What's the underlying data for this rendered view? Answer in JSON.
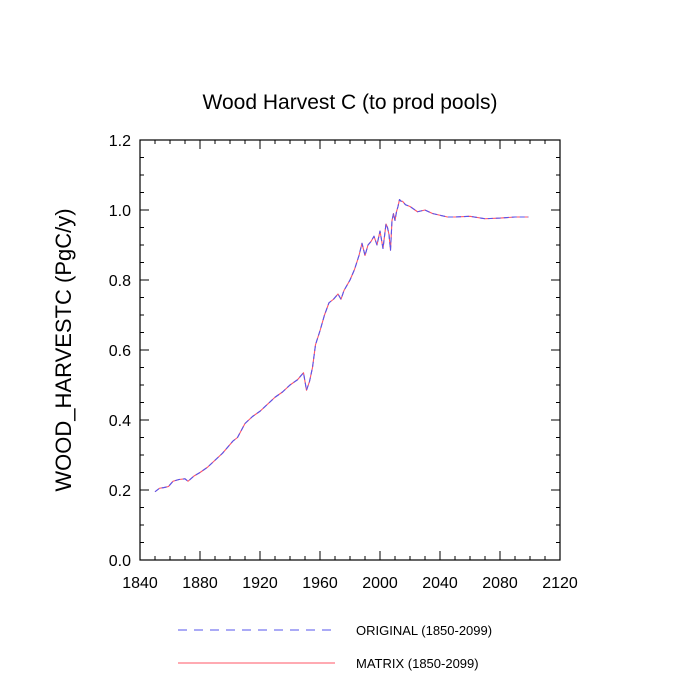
{
  "chart_data": {
    "type": "line",
    "title": "Wood Harvest C (to prod pools)",
    "xlabel": "",
    "ylabel": "WOOD_HARVESTC  (PgC/y)",
    "xlim": [
      1840,
      2120
    ],
    "ylim": [
      0.0,
      1.2
    ],
    "xticks": [
      1840,
      1880,
      1920,
      1960,
      2000,
      2040,
      2080,
      2120
    ],
    "yticks": [
      "0.0",
      "0.2",
      "0.4",
      "0.6",
      "0.8",
      "1.0",
      "1.2"
    ],
    "grid": false,
    "legend_placement": "bottom",
    "series": [
      {
        "name": "ORIGINAL (1850-2099)",
        "color": "#5555ee",
        "style": "dashed",
        "x": [
          1850,
          1853,
          1856,
          1859,
          1862,
          1866,
          1870,
          1872,
          1876,
          1880,
          1885,
          1890,
          1895,
          1898,
          1902,
          1905,
          1910,
          1915,
          1920,
          1925,
          1930,
          1935,
          1940,
          1945,
          1949,
          1951,
          1953,
          1955,
          1957,
          1960,
          1963,
          1966,
          1969,
          1972,
          1974,
          1976,
          1980,
          1983,
          1986,
          1988,
          1990,
          1992,
          1994,
          1996,
          1998,
          2000,
          2002,
          2004,
          2005,
          2006,
          2007,
          2008,
          2009,
          2010,
          2011,
          2012,
          2013,
          2014,
          2015,
          2017,
          2020,
          2025,
          2030,
          2035,
          2040,
          2045,
          2050,
          2060,
          2070,
          2080,
          2090,
          2099
        ],
        "y": [
          0.195,
          0.205,
          0.207,
          0.21,
          0.225,
          0.23,
          0.232,
          0.225,
          0.24,
          0.25,
          0.265,
          0.285,
          0.305,
          0.32,
          0.34,
          0.35,
          0.39,
          0.41,
          0.425,
          0.445,
          0.465,
          0.48,
          0.5,
          0.515,
          0.535,
          0.485,
          0.51,
          0.55,
          0.615,
          0.655,
          0.7,
          0.735,
          0.745,
          0.76,
          0.745,
          0.77,
          0.8,
          0.83,
          0.87,
          0.905,
          0.87,
          0.9,
          0.91,
          0.925,
          0.9,
          0.94,
          0.89,
          0.96,
          0.95,
          0.93,
          0.885,
          0.97,
          0.99,
          0.97,
          0.995,
          1.01,
          1.03,
          1.025,
          1.025,
          1.015,
          1.01,
          0.995,
          1.0,
          0.99,
          0.985,
          0.98,
          0.98,
          0.982,
          0.975,
          0.977,
          0.98,
          0.98
        ]
      },
      {
        "name": "MATRIX (1850-2099)",
        "color": "#ff5566",
        "style": "solid",
        "x": [
          1850,
          1853,
          1856,
          1859,
          1862,
          1866,
          1870,
          1872,
          1876,
          1880,
          1885,
          1890,
          1895,
          1898,
          1902,
          1905,
          1910,
          1915,
          1920,
          1925,
          1930,
          1935,
          1940,
          1945,
          1949,
          1951,
          1953,
          1955,
          1957,
          1960,
          1963,
          1966,
          1969,
          1972,
          1974,
          1976,
          1980,
          1983,
          1986,
          1988,
          1990,
          1992,
          1994,
          1996,
          1998,
          2000,
          2002,
          2004,
          2005,
          2006,
          2007,
          2008,
          2009,
          2010,
          2011,
          2012,
          2013,
          2014,
          2015,
          2017,
          2020,
          2025,
          2030,
          2035,
          2040,
          2045,
          2050,
          2060,
          2070,
          2080,
          2090,
          2099
        ],
        "y": [
          0.195,
          0.205,
          0.207,
          0.21,
          0.225,
          0.23,
          0.232,
          0.225,
          0.24,
          0.25,
          0.265,
          0.285,
          0.305,
          0.32,
          0.34,
          0.35,
          0.39,
          0.41,
          0.425,
          0.445,
          0.465,
          0.48,
          0.5,
          0.515,
          0.535,
          0.485,
          0.51,
          0.55,
          0.615,
          0.655,
          0.7,
          0.735,
          0.745,
          0.76,
          0.745,
          0.77,
          0.8,
          0.83,
          0.87,
          0.905,
          0.87,
          0.9,
          0.91,
          0.925,
          0.9,
          0.94,
          0.89,
          0.96,
          0.95,
          0.93,
          0.885,
          0.97,
          0.99,
          0.97,
          0.995,
          1.01,
          1.03,
          1.025,
          1.025,
          1.015,
          1.01,
          0.995,
          1.0,
          0.99,
          0.985,
          0.98,
          0.98,
          0.982,
          0.975,
          0.977,
          0.98,
          0.98
        ]
      }
    ]
  }
}
